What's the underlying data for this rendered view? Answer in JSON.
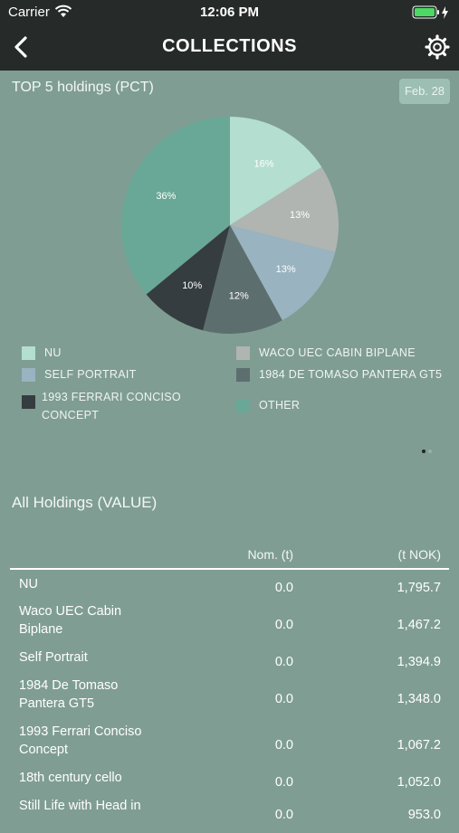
{
  "status": {
    "carrier": "Carrier",
    "time": "12:06 PM"
  },
  "nav": {
    "title": "COLLECTIONS"
  },
  "top5": {
    "title": "TOP 5 holdings (PCT)",
    "date": "Feb. 28",
    "legend": [
      {
        "label": "NU",
        "color": "#b3ded0"
      },
      {
        "label": "WACO UEC CABIN BIPLANE",
        "color": "#b0b5b2"
      },
      {
        "label": "SELF PORTRAIT",
        "color": "#9ab3c0"
      },
      {
        "label": "1984 DE TOMASO PANTERA GT5",
        "color": "#5c6f6e"
      },
      {
        "label": "1993 FERRARI CONCISO CONCEPT",
        "color": "#353d40"
      },
      {
        "label": "OTHER",
        "color": "#69a896"
      }
    ]
  },
  "chart_data": {
    "type": "pie",
    "title": "TOP 5 holdings (PCT)",
    "slices": [
      {
        "name": "NU",
        "value": 16,
        "label": "16%",
        "color": "#b3ded0"
      },
      {
        "name": "WACO UEC CABIN BIPLANE",
        "value": 13,
        "label": "13%",
        "color": "#b0b5b2"
      },
      {
        "name": "SELF PORTRAIT",
        "value": 13,
        "label": "13%",
        "color": "#9ab3c0"
      },
      {
        "name": "1984 DE TOMASO PANTERA GT5",
        "value": 12,
        "label": "12%",
        "color": "#5c6f6e"
      },
      {
        "name": "1993 FERRARI CONCISO CONCEPT",
        "value": 10,
        "label": "10%",
        "color": "#353d40"
      },
      {
        "name": "OTHER",
        "value": 36,
        "label": "36%",
        "color": "#69a896"
      }
    ]
  },
  "holdings": {
    "title": "All Holdings (VALUE)",
    "col_nom": "Nom. (t)",
    "col_nok": "(t NOK)",
    "rows": [
      {
        "name": "NU",
        "nom": "0.0",
        "value": "1,795.7"
      },
      {
        "name": "Waco UEC Cabin Biplane",
        "nom": "0.0",
        "value": "1,467.2"
      },
      {
        "name": "Self Portrait",
        "nom": "0.0",
        "value": "1,394.9"
      },
      {
        "name": "1984 De Tomaso Pantera GT5",
        "nom": "0.0",
        "value": "1,348.0"
      },
      {
        "name": "1993 Ferrari Conciso Concept",
        "nom": "0.0",
        "value": "1,067.2"
      },
      {
        "name": "18th century cello",
        "nom": "0.0",
        "value": "1,052.0"
      },
      {
        "name": "Still Life with Head in",
        "nom": "0.0",
        "value": "953.0"
      }
    ]
  }
}
